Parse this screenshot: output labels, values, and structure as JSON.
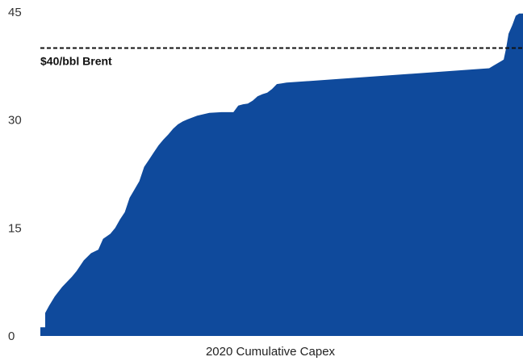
{
  "chart_data": {
    "type": "area",
    "title": "",
    "xlabel": "2020 Cumulative Capex",
    "ylabel": "",
    "ylim": [
      0,
      45
    ],
    "yticks": [
      "0",
      "15",
      "30",
      "45"
    ],
    "xlim": [
      0,
      100
    ],
    "grid": false,
    "legend": "none",
    "colors": {
      "fill": "#0F4A9C",
      "reference_line": "#111111"
    },
    "reference_line": {
      "value": 40,
      "label": "$40/bbl Brent",
      "style": "dashed"
    },
    "series": [
      {
        "x": [
          0,
          1.0,
          1.0,
          1.8,
          3,
          4.5,
          6.5,
          7.5,
          9,
          10.5,
          12,
          13,
          14.5,
          15.5,
          16.5,
          17.5,
          18.5,
          19.2,
          20.5,
          21.5,
          22.5,
          23.5,
          24.5,
          25.5,
          26.5,
          27.5,
          28.5,
          29.5,
          30.5,
          32.5,
          35,
          37.5,
          40,
          41,
          42,
          43,
          44,
          45,
          46,
          47,
          48,
          49,
          50,
          51,
          93,
          94,
          95.5,
          96,
          96.5,
          97,
          97.8,
          98.5,
          99.2,
          100
        ],
        "y": [
          1.2,
          1.2,
          3.2,
          4.2,
          5.5,
          6.8,
          8.2,
          9.0,
          10.5,
          11.5,
          12.0,
          13.5,
          14.2,
          15.0,
          16.2,
          17.2,
          19.2,
          20.0,
          21.5,
          23.5,
          24.5,
          25.5,
          26.5,
          27.3,
          28.0,
          28.8,
          29.4,
          29.8,
          30.1,
          30.6,
          31.0,
          31.1,
          31.1,
          32.0,
          32.2,
          32.3,
          32.7,
          33.3,
          33.6,
          33.8,
          34.3,
          35.0,
          35.1,
          35.2,
          37.2,
          37.6,
          38.2,
          38.4,
          40.0,
          42.0,
          43.2,
          44.5,
          44.8,
          44.8
        ]
      }
    ]
  }
}
